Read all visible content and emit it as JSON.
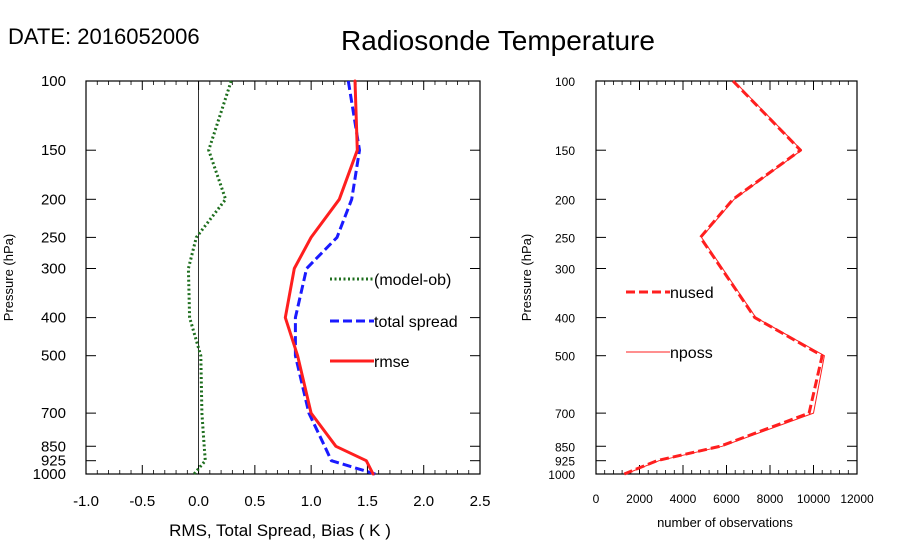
{
  "header": {
    "date_label": "DATE: 2016052006",
    "title": "Radiosonde Temperature"
  },
  "chart_data": [
    {
      "type": "line",
      "panel": "left",
      "xlabel": "RMS, Total Spread, Bias ( K )",
      "ylabel": "Pressure (hPa)",
      "xlim": [
        -1.0,
        2.5
      ],
      "xticks": [
        -1.0,
        -0.5,
        0.0,
        0.5,
        1.0,
        1.5,
        2.0,
        2.5
      ],
      "xtick_labels": [
        "-1.0",
        "-0.5",
        "0.0",
        "0.5",
        "1.0",
        "1.5",
        "2.0",
        "2.5"
      ],
      "ylim": [
        1000,
        100
      ],
      "yscale": "log",
      "yticks": [
        100,
        150,
        200,
        250,
        300,
        400,
        500,
        700,
        850,
        925,
        1000
      ],
      "ytick_labels": [
        "100",
        "150",
        "200",
        "250",
        "300",
        "400",
        "500",
        "700",
        "850",
        "925",
        "1000"
      ],
      "zero_line": true,
      "legend_position": "middle-right",
      "pressure": [
        100,
        150,
        200,
        250,
        300,
        400,
        500,
        700,
        850,
        925,
        1000
      ],
      "series": [
        {
          "name": "(model-ob)",
          "color": "#1e6e1e",
          "style": "dotted",
          "values": [
            0.29,
            0.09,
            0.24,
            -0.02,
            -0.09,
            -0.08,
            0.02,
            0.03,
            0.05,
            0.06,
            -0.04
          ]
        },
        {
          "name": "total spread",
          "color": "#1a1aff",
          "style": "dashed",
          "values": [
            1.33,
            1.43,
            1.36,
            1.23,
            0.96,
            0.86,
            0.86,
            0.98,
            1.12,
            1.18,
            1.57
          ]
        },
        {
          "name": "rmse",
          "color": "#ff1f1f",
          "style": "solid",
          "values": [
            1.39,
            1.41,
            1.25,
            1.0,
            0.85,
            0.77,
            0.88,
            1.0,
            1.22,
            1.49,
            1.55
          ]
        }
      ]
    },
    {
      "type": "line",
      "panel": "right",
      "xlabel": "number of observations",
      "ylabel": "Pressure (hPa)",
      "xlim": [
        0,
        12000
      ],
      "xticks": [
        0,
        2000,
        4000,
        6000,
        8000,
        10000,
        12000
      ],
      "xtick_labels": [
        "0",
        "2000",
        "4000",
        "6000",
        "8000",
        "10000",
        "12000"
      ],
      "ylim": [
        1000,
        100
      ],
      "yscale": "log",
      "yticks": [
        100,
        150,
        200,
        250,
        300,
        400,
        500,
        700,
        850,
        925,
        1000
      ],
      "ytick_labels": [
        "100",
        "150",
        "200",
        "250",
        "300",
        "400",
        "500",
        "700",
        "850",
        "925",
        "1000"
      ],
      "legend_position": "middle-left",
      "pressure": [
        100,
        150,
        200,
        250,
        400,
        500,
        700,
        850,
        925,
        1000
      ],
      "series": [
        {
          "name": "nused",
          "color": "#ff1f1f",
          "style": "dashed",
          "values": [
            6300,
            9400,
            6300,
            4800,
            7300,
            10400,
            9800,
            5700,
            2800,
            1300
          ]
        },
        {
          "name": "nposs",
          "color": "#ff1f1f",
          "style": "thin",
          "values": [
            6350,
            9450,
            6350,
            4850,
            7350,
            10500,
            10000,
            5800,
            2900,
            1350
          ]
        }
      ]
    }
  ]
}
